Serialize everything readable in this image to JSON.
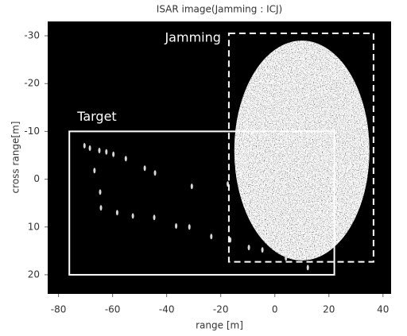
{
  "chart_data": {
    "type": "image",
    "title": "ISAR image(Jamming : ICJ)",
    "x_label": "range [m]",
    "y_label": "cross range[m]",
    "xlim": [
      -84,
      43
    ],
    "ylim": [
      -33,
      24
    ],
    "y_inverted": true,
    "xticks": [
      -80,
      -60,
      -40,
      -20,
      0,
      20,
      40
    ],
    "yticks": [
      -30,
      -20,
      -10,
      0,
      10,
      20
    ],
    "series": [
      {
        "color": "#d8d8d8",
        "x": [
          -70.4,
          -68.4,
          -64.9,
          -62.3,
          -59.7,
          -55.1,
          -48.1,
          -44.3,
          -66.7,
          -64.6,
          -64.3,
          -58.3,
          -52.5,
          -44.6,
          -36.5,
          -31.6,
          -30.7,
          -23.5,
          -16.5,
          -17.4,
          -9.6,
          -4.6,
          4.1,
          12.2
        ],
        "y": [
          -7,
          -6.5,
          -6,
          -5.7,
          -5.2,
          -4.3,
          -2.3,
          -1.3,
          -1.8,
          2.7,
          6,
          7,
          7.7,
          8,
          9.8,
          10,
          1.5,
          12,
          12.7,
          1,
          14.3,
          14.8,
          16.5,
          18.5
        ]
      }
    ],
    "jamming_region": {
      "center": [
        10,
        -6
      ],
      "radius": [
        25,
        23
      ]
    },
    "annotations": [
      {
        "text": "Target",
        "style": "solid",
        "x": [
          -76,
          22
        ],
        "y": [
          -10,
          20
        ]
      },
      {
        "text": "Jamming",
        "style": "dashed",
        "x": [
          -17,
          36.5
        ],
        "y": [
          -30.5,
          17.3
        ]
      }
    ]
  }
}
